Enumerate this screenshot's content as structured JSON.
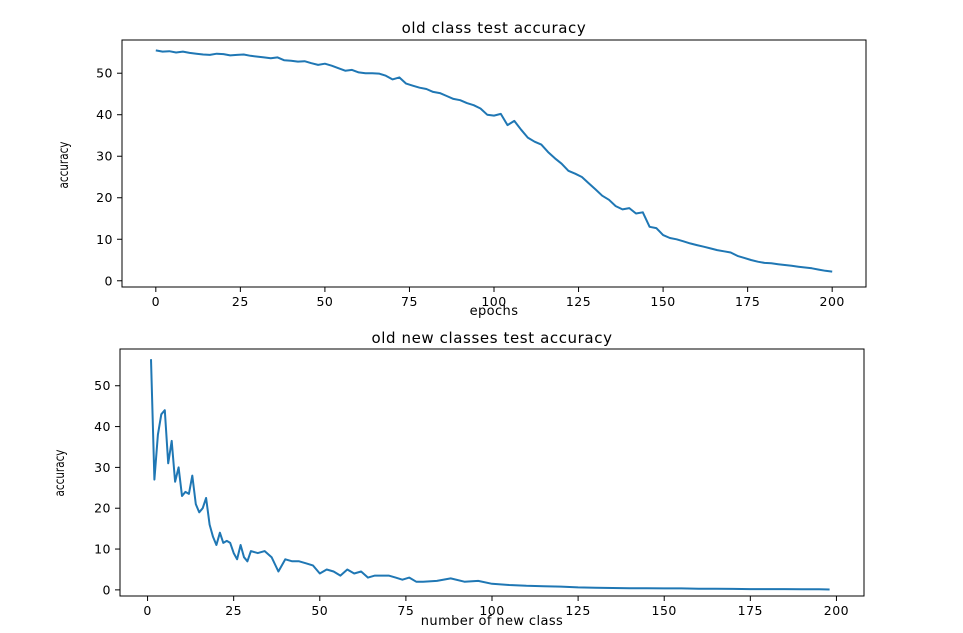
{
  "chart_data": [
    {
      "type": "line",
      "title": "old class test accuracy",
      "xlabel": "epochs",
      "ylabel": "accuracy",
      "xlim": [
        -10,
        210
      ],
      "ylim": [
        -1.5,
        58
      ],
      "xticks": [
        0,
        25,
        50,
        75,
        100,
        125,
        150,
        175,
        200
      ],
      "yticks": [
        0,
        10,
        20,
        30,
        40,
        50
      ],
      "grid": false,
      "color": "#1f77b4",
      "series": [
        {
          "x": [
            0,
            2,
            4,
            6,
            8,
            10,
            12,
            14,
            16,
            18,
            20,
            22,
            24,
            26,
            28,
            30,
            32,
            34,
            36,
            38,
            40,
            42,
            44,
            46,
            48,
            50,
            52,
            54,
            56,
            58,
            60,
            62,
            64,
            66,
            68,
            70,
            72,
            74,
            76,
            78,
            80,
            82,
            84,
            86,
            88,
            90,
            92,
            94,
            96,
            98,
            100,
            102,
            104,
            106,
            108,
            110,
            112,
            114,
            116,
            118,
            120,
            122,
            124,
            126,
            128,
            130,
            132,
            134,
            136,
            138,
            140,
            142,
            144,
            146,
            148,
            150,
            152,
            154,
            156,
            158,
            160,
            162,
            164,
            166,
            168,
            170,
            172,
            174,
            176,
            178,
            180,
            182,
            184,
            186,
            188,
            190,
            192,
            194,
            196,
            198,
            200
          ],
          "y": [
            55.5,
            55.2,
            55.3,
            55.0,
            55.2,
            54.9,
            54.7,
            54.5,
            54.4,
            54.7,
            54.6,
            54.3,
            54.4,
            54.5,
            54.2,
            54.0,
            53.8,
            53.6,
            53.8,
            53.1,
            53.0,
            52.8,
            52.9,
            52.4,
            52.0,
            52.3,
            51.8,
            51.2,
            50.6,
            50.8,
            50.2,
            50.0,
            50.0,
            49.9,
            49.4,
            48.5,
            49.0,
            47.5,
            47.0,
            46.5,
            46.2,
            45.5,
            45.2,
            44.5,
            43.8,
            43.5,
            42.8,
            42.3,
            41.5,
            40.0,
            39.8,
            40.2,
            37.5,
            38.5,
            36.4,
            34.5,
            33.5,
            32.8,
            31.0,
            29.5,
            28.2,
            26.5,
            25.8,
            25.0,
            23.5,
            22.0,
            20.5,
            19.5,
            18.0,
            17.2,
            17.5,
            16.2,
            16.5,
            13.0,
            12.7,
            11.0,
            10.3,
            10.0,
            9.5,
            9.0,
            8.6,
            8.2,
            7.8,
            7.4,
            7.1,
            6.8,
            6.0,
            5.5,
            5.0,
            4.6,
            4.3,
            4.2,
            4.0,
            3.8,
            3.6,
            3.4,
            3.2,
            3.0,
            2.7,
            2.4,
            2.2
          ]
        }
      ]
    },
    {
      "type": "line",
      "title": "old new classes test accuracy",
      "xlabel": "number of new class",
      "ylabel": "accuracy",
      "xlim": [
        -8,
        208
      ],
      "ylim": [
        -1.5,
        59
      ],
      "xticks": [
        0,
        25,
        50,
        75,
        100,
        125,
        150,
        175,
        200
      ],
      "yticks": [
        0,
        10,
        20,
        30,
        40,
        50
      ],
      "grid": false,
      "color": "#1f77b4",
      "series": [
        {
          "x": [
            1,
            2,
            3,
            4,
            5,
            6,
            7,
            8,
            9,
            10,
            11,
            12,
            13,
            14,
            15,
            16,
            17,
            18,
            19,
            20,
            21,
            22,
            23,
            24,
            25,
            26,
            27,
            28,
            29,
            30,
            32,
            34,
            36,
            38,
            40,
            42,
            44,
            46,
            48,
            50,
            52,
            54,
            56,
            58,
            60,
            62,
            64,
            66,
            68,
            70,
            72,
            74,
            76,
            78,
            80,
            84,
            88,
            92,
            96,
            100,
            105,
            110,
            115,
            120,
            125,
            130,
            135,
            140,
            145,
            150,
            155,
            160,
            165,
            170,
            175,
            180,
            185,
            190,
            195,
            198
          ],
          "y": [
            56.5,
            27.0,
            38.0,
            43.0,
            44.0,
            31.0,
            36.5,
            26.5,
            30.0,
            23.0,
            24.0,
            23.5,
            28.0,
            21.0,
            19.0,
            20.0,
            22.5,
            16.0,
            13.0,
            11.0,
            14.0,
            11.5,
            12.0,
            11.5,
            9.0,
            7.5,
            11.0,
            8.0,
            7.0,
            9.5,
            9.0,
            9.5,
            8.0,
            4.5,
            7.5,
            7.0,
            7.0,
            6.5,
            6.0,
            4.0,
            5.0,
            4.5,
            3.5,
            5.0,
            4.0,
            4.5,
            3.0,
            3.5,
            3.5,
            3.5,
            3.0,
            2.5,
            3.0,
            2.0,
            2.0,
            2.2,
            2.8,
            2.0,
            2.2,
            1.5,
            1.2,
            1.0,
            0.9,
            0.8,
            0.6,
            0.5,
            0.45,
            0.4,
            0.4,
            0.35,
            0.35,
            0.3,
            0.3,
            0.25,
            0.2,
            0.2,
            0.2,
            0.15,
            0.15,
            0.1
          ]
        }
      ]
    }
  ]
}
